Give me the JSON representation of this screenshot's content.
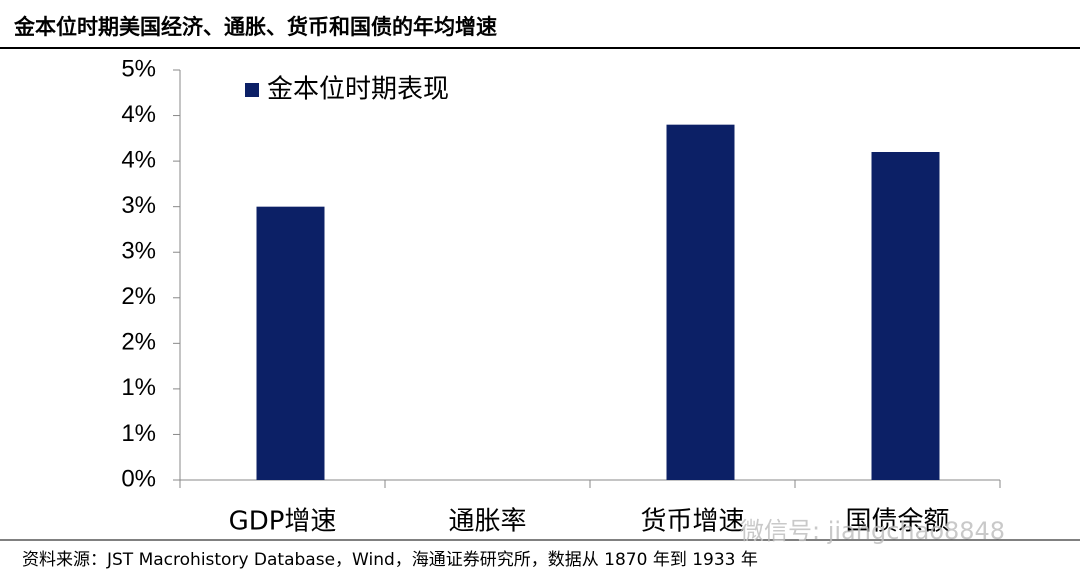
{
  "chart_data": {
    "type": "bar",
    "title": "金本位时期美国经济、通胀、货币和国债的年均增速",
    "categories": [
      "GDP增速",
      "通胀率",
      "货币增速",
      "国债余额"
    ],
    "series": [
      {
        "name": "金本位时期表现",
        "color": "#0c2066",
        "values": [
          3.0,
          0,
          3.9,
          3.6
        ]
      }
    ],
    "ylim": [
      0,
      4.5
    ],
    "yticks": [
      {
        "value": 0,
        "label": "0%"
      },
      {
        "value": 0.5,
        "label": "1%"
      },
      {
        "value": 1.0,
        "label": "1%"
      },
      {
        "value": 1.5,
        "label": "2%"
      },
      {
        "value": 2.0,
        "label": "2%"
      },
      {
        "value": 2.5,
        "label": "3%"
      },
      {
        "value": 3.0,
        "label": "3%"
      },
      {
        "value": 3.5,
        "label": "4%"
      },
      {
        "value": 4.0,
        "label": "4%"
      },
      {
        "value": 4.5,
        "label": "5%"
      }
    ],
    "legend": "top-left",
    "source": "资料来源：JST Macrohistory Database，Wind，海通证券研究所，数据从 1870 年到 1933 年",
    "watermark": "微信号: jiangchao8848"
  }
}
